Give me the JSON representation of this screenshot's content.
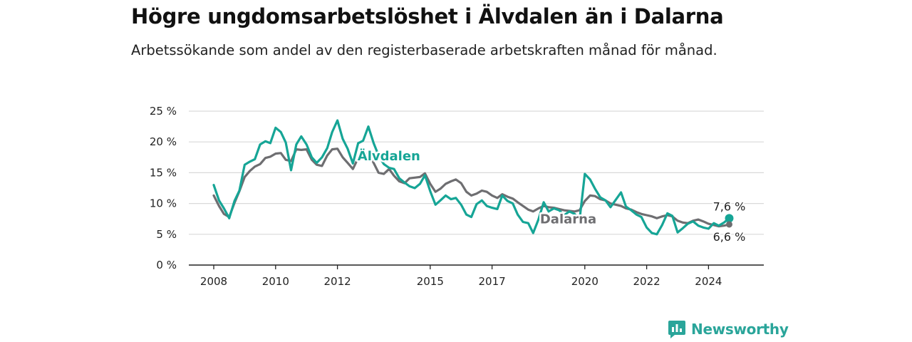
{
  "title": "Högre ungdomsarbetslöshet i Älvdalen än i Dalarna",
  "subtitle": "Arbetssökande som andel av den registerbaserade arbetskraften månad för månad.",
  "brand": {
    "name": "Newsworthy",
    "icon": "bar-chart-logo-icon",
    "color": "#2aa59a"
  },
  "colors": {
    "alvdalen": "#16a596",
    "dalarna": "#6e6e71",
    "grid": "#d9d9d9",
    "axis": "#222222"
  },
  "chart_data": {
    "type": "line",
    "x_ticks": [
      "2008",
      "2010",
      "2012",
      "2015",
      "2017",
      "2020",
      "2022",
      "2024"
    ],
    "x_tick_values": [
      2008,
      2010,
      2012,
      2015,
      2017,
      2020,
      2022,
      2024
    ],
    "xlim": [
      2007.6,
      2025.3
    ],
    "y_ticks": [
      "0 %",
      "5 %",
      "10 %",
      "15 %",
      "20 %",
      "25 %"
    ],
    "y_tick_values": [
      0,
      5,
      10,
      15,
      20,
      25
    ],
    "ylim": [
      0,
      25
    ],
    "grid": true,
    "series": [
      {
        "name": "Älvdalen",
        "end_label": "7,6 %",
        "x": [
          2008.0,
          2008.17,
          2008.33,
          2008.5,
          2008.67,
          2008.83,
          2009.0,
          2009.17,
          2009.33,
          2009.5,
          2009.67,
          2009.83,
          2010.0,
          2010.17,
          2010.33,
          2010.5,
          2010.67,
          2010.83,
          2011.0,
          2011.17,
          2011.33,
          2011.5,
          2011.67,
          2011.83,
          2012.0,
          2012.17,
          2012.33,
          2012.5,
          2012.67,
          2012.83,
          2013.0,
          2013.17,
          2013.33,
          2013.5,
          2013.67,
          2013.83,
          2014.0,
          2014.17,
          2014.33,
          2014.5,
          2014.67,
          2014.83,
          2015.0,
          2015.17,
          2015.33,
          2015.5,
          2015.67,
          2015.83,
          2016.0,
          2016.17,
          2016.33,
          2016.5,
          2016.67,
          2016.83,
          2017.0,
          2017.17,
          2017.33,
          2017.5,
          2017.67,
          2017.83,
          2018.0,
          2018.17,
          2018.33,
          2018.5,
          2018.67,
          2018.83,
          2019.0,
          2019.17,
          2019.33,
          2019.5,
          2019.67,
          2019.83,
          2020.0,
          2020.17,
          2020.33,
          2020.5,
          2020.67,
          2020.83,
          2021.0,
          2021.17,
          2021.33,
          2021.5,
          2021.67,
          2021.83,
          2022.0,
          2022.17,
          2022.33,
          2022.5,
          2022.67,
          2022.83,
          2023.0,
          2023.17,
          2023.33,
          2023.5,
          2023.67,
          2023.83,
          2024.0,
          2024.17,
          2024.33,
          2024.5,
          2024.67
        ],
        "values": [
          13.0,
          10.5,
          9.2,
          7.6,
          10.4,
          12.1,
          16.3,
          16.8,
          17.2,
          19.6,
          20.1,
          19.8,
          22.3,
          21.6,
          19.9,
          15.4,
          19.6,
          20.9,
          19.6,
          17.5,
          16.6,
          17.5,
          19.0,
          21.6,
          23.5,
          20.5,
          18.9,
          16.5,
          19.8,
          20.2,
          22.5,
          19.8,
          17.8,
          16.4,
          15.8,
          15.6,
          14.1,
          13.4,
          12.8,
          12.5,
          13.2,
          14.6,
          12.0,
          9.8,
          10.5,
          11.3,
          10.7,
          10.9,
          9.8,
          8.2,
          7.8,
          9.9,
          10.5,
          9.6,
          9.3,
          9.1,
          11.3,
          10.4,
          10.0,
          8.2,
          7.0,
          6.8,
          5.2,
          7.4,
          10.2,
          8.7,
          9.2,
          8.9,
          8.1,
          8.7,
          8.3,
          7.3,
          14.8,
          13.9,
          12.4,
          11.0,
          10.5,
          9.4,
          10.6,
          11.8,
          9.5,
          8.9,
          8.2,
          7.8,
          6.1,
          5.2,
          5.0,
          6.5,
          8.4,
          8.0,
          5.3,
          6.0,
          6.7,
          7.1,
          6.4,
          6.1,
          5.9,
          6.8,
          6.4,
          6.9,
          7.6
        ]
      },
      {
        "name": "Dalarna",
        "end_label": "6,6 %",
        "x": [
          2008.0,
          2008.17,
          2008.33,
          2008.5,
          2008.67,
          2008.83,
          2009.0,
          2009.17,
          2009.33,
          2009.5,
          2009.67,
          2009.83,
          2010.0,
          2010.17,
          2010.33,
          2010.5,
          2010.67,
          2010.83,
          2011.0,
          2011.17,
          2011.33,
          2011.5,
          2011.67,
          2011.83,
          2012.0,
          2012.17,
          2012.33,
          2012.5,
          2012.67,
          2012.83,
          2013.0,
          2013.17,
          2013.33,
          2013.5,
          2013.67,
          2013.83,
          2014.0,
          2014.17,
          2014.33,
          2014.5,
          2014.67,
          2014.83,
          2015.0,
          2015.17,
          2015.33,
          2015.5,
          2015.67,
          2015.83,
          2016.0,
          2016.17,
          2016.33,
          2016.5,
          2016.67,
          2016.83,
          2017.0,
          2017.17,
          2017.33,
          2017.5,
          2017.67,
          2017.83,
          2018.0,
          2018.17,
          2018.33,
          2018.5,
          2018.67,
          2018.83,
          2019.0,
          2019.17,
          2019.33,
          2019.5,
          2019.67,
          2019.83,
          2020.0,
          2020.17,
          2020.33,
          2020.5,
          2020.67,
          2020.83,
          2021.0,
          2021.17,
          2021.33,
          2021.5,
          2021.67,
          2021.83,
          2022.0,
          2022.17,
          2022.33,
          2022.5,
          2022.67,
          2022.83,
          2023.0,
          2023.17,
          2023.33,
          2023.5,
          2023.67,
          2023.83,
          2024.0,
          2024.17,
          2024.33,
          2024.5,
          2024.67
        ],
        "values": [
          11.3,
          9.6,
          8.3,
          7.8,
          10.1,
          12.0,
          14.3,
          15.3,
          16.0,
          16.4,
          17.4,
          17.6,
          18.1,
          18.2,
          17.1,
          16.9,
          18.8,
          18.7,
          18.8,
          17.1,
          16.3,
          16.1,
          17.8,
          18.8,
          18.9,
          17.5,
          16.6,
          15.6,
          17.4,
          17.5,
          18.2,
          16.6,
          15.0,
          14.8,
          15.6,
          14.5,
          13.6,
          13.3,
          14.1,
          14.2,
          14.3,
          14.9,
          13.2,
          11.9,
          12.4,
          13.2,
          13.6,
          13.9,
          13.3,
          11.9,
          11.3,
          11.6,
          12.1,
          11.9,
          11.3,
          10.9,
          11.5,
          11.1,
          10.8,
          10.2,
          9.6,
          9.0,
          8.7,
          9.2,
          9.6,
          9.4,
          9.3,
          9.1,
          8.9,
          8.8,
          8.7,
          8.9,
          10.4,
          11.3,
          11.2,
          10.7,
          10.5,
          10.0,
          9.8,
          9.6,
          9.2,
          9.0,
          8.6,
          8.3,
          8.1,
          7.9,
          7.6,
          7.9,
          8.1,
          7.9,
          7.2,
          6.9,
          6.8,
          7.2,
          7.4,
          7.1,
          6.7,
          6.5,
          6.3,
          6.4,
          6.6
        ]
      }
    ],
    "series_labels": [
      {
        "series": "Älvdalen",
        "text": "Älvdalen",
        "x": 2012.65,
        "y": 17.8
      },
      {
        "series": "Dalarna",
        "text": "Dalarna",
        "x": 2018.55,
        "y": 7.6
      }
    ]
  }
}
